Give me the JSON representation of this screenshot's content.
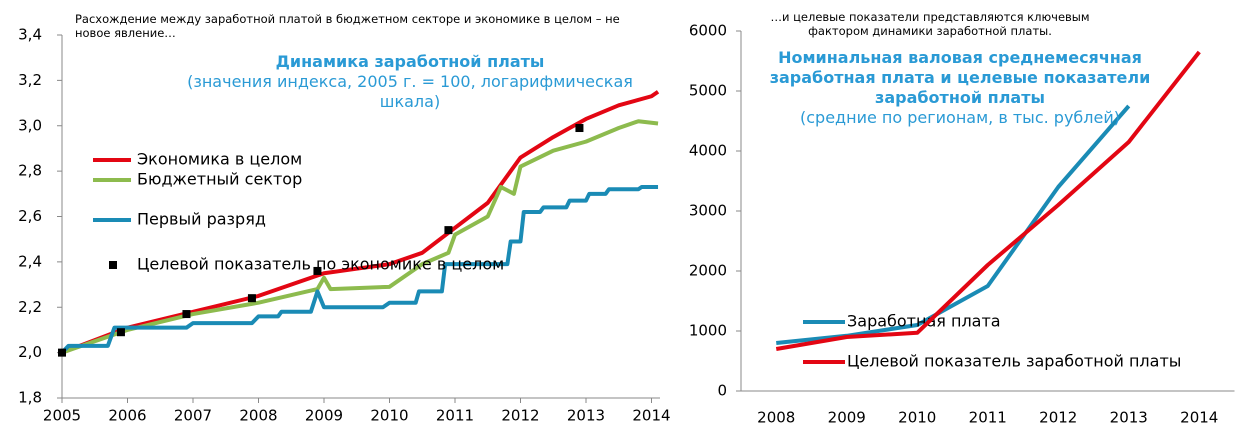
{
  "chart_data": [
    {
      "type": "line",
      "annotation": "Расхождение между заработной платой в бюджетном секторе и экономике в целом – не новое явление…",
      "title": "Динамика заработной платы",
      "subtitle": "(значения индекса, 2005 г. = 100, логарифмическая шкала)",
      "xlim": [
        2005,
        2014.13
      ],
      "xticks": [
        2005,
        2006,
        2007,
        2008,
        2009,
        2010,
        2011,
        2012,
        2013,
        2014
      ],
      "ylim": [
        1.8,
        3.4
      ],
      "yticks": [
        {
          "value": 1.8,
          "label": "1,8"
        },
        {
          "value": 2.0,
          "label": "2,0"
        },
        {
          "value": 2.2,
          "label": "2,2"
        },
        {
          "value": 2.4,
          "label": "2,4"
        },
        {
          "value": 2.6,
          "label": "2,6"
        },
        {
          "value": 2.8,
          "label": "2,8"
        },
        {
          "value": 3.0,
          "label": "3,0"
        },
        {
          "value": 3.2,
          "label": "3,2"
        },
        {
          "value": 3.4,
          "label": "3,4"
        }
      ],
      "series": [
        {
          "name": "Экономика в целом",
          "color": "#e30613",
          "kind": "line",
          "x": [
            2005,
            2006,
            2007,
            2008,
            2009,
            2009.5,
            2010,
            2010.5,
            2011,
            2011.5,
            2011.8,
            2012,
            2012.5,
            2013,
            2013.5,
            2014,
            2014.1
          ],
          "values": [
            2.0,
            2.11,
            2.18,
            2.25,
            2.35,
            2.37,
            2.39,
            2.44,
            2.55,
            2.66,
            2.78,
            2.86,
            2.95,
            3.03,
            3.09,
            3.13,
            3.15
          ]
        },
        {
          "name": "Бюджетный сектор",
          "color": "#8dbb4e",
          "kind": "line",
          "x": [
            2005,
            2006,
            2007,
            2008,
            2008.9,
            2009,
            2009.1,
            2010,
            2010.5,
            2010.9,
            2011,
            2011.5,
            2011.7,
            2011.9,
            2012,
            2012.5,
            2013,
            2013.5,
            2013.8,
            2014.1
          ],
          "values": [
            2.0,
            2.1,
            2.17,
            2.22,
            2.28,
            2.33,
            2.28,
            2.29,
            2.39,
            2.44,
            2.52,
            2.6,
            2.73,
            2.7,
            2.82,
            2.89,
            2.93,
            2.99,
            3.02,
            3.01
          ]
        },
        {
          "name": "Первый разряд",
          "color": "#1a8bb5",
          "kind": "line",
          "x": [
            2005,
            2005.1,
            2005.7,
            2005.8,
            2006.9,
            2007,
            2007.9,
            2008,
            2008.3,
            2008.35,
            2008.8,
            2008.9,
            2009,
            2009.9,
            2010,
            2010.4,
            2010.45,
            2010.8,
            2010.85,
            2011.8,
            2011.85,
            2012,
            2012.05,
            2012.3,
            2012.35,
            2012.7,
            2012.75,
            2013,
            2013.05,
            2013.3,
            2013.35,
            2013.8,
            2013.85,
            2014.1
          ],
          "values": [
            2.0,
            2.03,
            2.03,
            2.11,
            2.11,
            2.13,
            2.13,
            2.16,
            2.16,
            2.18,
            2.18,
            2.27,
            2.2,
            2.2,
            2.22,
            2.22,
            2.27,
            2.27,
            2.39,
            2.39,
            2.49,
            2.49,
            2.62,
            2.62,
            2.64,
            2.64,
            2.67,
            2.67,
            2.7,
            2.7,
            2.72,
            2.72,
            2.73,
            2.73
          ]
        },
        {
          "name": "Целевой показатель по экономике в целом",
          "color": "#000000",
          "kind": "scatter",
          "x": [
            2005,
            2005.9,
            2006.9,
            2007.9,
            2008.9,
            2010.9,
            2012.9
          ],
          "values": [
            2.0,
            2.09,
            2.17,
            2.24,
            2.36,
            2.54,
            2.99
          ]
        }
      ]
    },
    {
      "type": "line",
      "annotation": "…и целевые показатели представляются ключевым фактором динамики заработной платы.",
      "title": "Номинальная валовая среднемесячная заработная плата и целевые показатели заработной платы",
      "subtitle": "(средние по регионам, в тыс. рублей)",
      "categories": [
        "2008",
        "2009",
        "2010",
        "2011",
        "2012",
        "2013",
        "2014"
      ],
      "ylim": [
        0,
        6000
      ],
      "yticks": [
        0,
        1000,
        2000,
        3000,
        4000,
        5000,
        6000
      ],
      "series": [
        {
          "name": "Заработная плата",
          "color": "#1a8bb5",
          "values": [
            800,
            920,
            1100,
            1750,
            3400,
            4750,
            null
          ]
        },
        {
          "name": "Целевой показатель заработной платы",
          "color": "#e30613",
          "values": [
            700,
            900,
            970,
            2100,
            3100,
            4150,
            5650
          ]
        }
      ]
    }
  ]
}
